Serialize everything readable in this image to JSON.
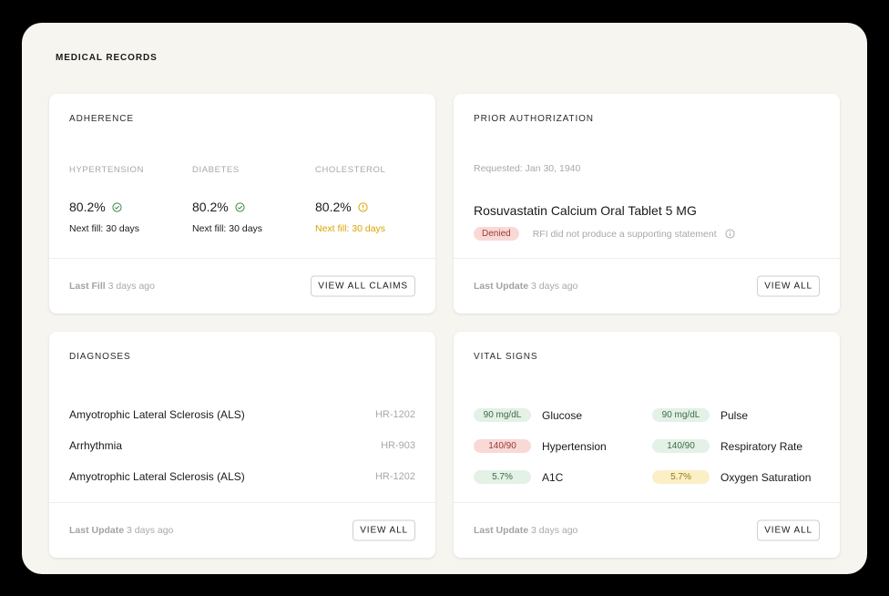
{
  "page": {
    "title": "MEDICAL RECORDS"
  },
  "colors": {
    "accent_green": "#3a8a4a",
    "warning_yellow": "#d9a400",
    "denied_red": "#f9d9d6"
  },
  "adherence": {
    "title": "ADHERENCE",
    "items": [
      {
        "label": "HYPERTENSION",
        "value": "80.2%",
        "status_icon": "check-circle-icon",
        "next_fill": "Next fill: 30 days"
      },
      {
        "label": "DIABETES",
        "value": "80.2%",
        "status_icon": "check-circle-icon",
        "next_fill": "Next fill: 30 days"
      },
      {
        "label": "CHOLESTEROL",
        "value": "80.2%",
        "status_icon": "warning-circle-icon",
        "next_fill": "Next fill: 30 days"
      }
    ],
    "footer_label": "Last Fill",
    "footer_time": "3 days ago",
    "button": "VIEW ALL CLAIMS"
  },
  "prior_auth": {
    "title": "PRIOR AUTHORIZATION",
    "requested": "Requested: Jan 30, 1940",
    "drug": "Rosuvastatin Calcium Oral Tablet 5 MG",
    "status": "Denied",
    "reason": "RFI did not produce a supporting statement",
    "footer_label": "Last Update",
    "footer_time": "3 days ago",
    "button": "VIEW ALL"
  },
  "diagnoses": {
    "title": "DIAGNOSES",
    "items": [
      {
        "name": "Amyotrophic Lateral Sclerosis (ALS)",
        "code": "HR-1202"
      },
      {
        "name": "Arrhythmia",
        "code": "HR-903"
      },
      {
        "name": "Amyotrophic Lateral Sclerosis (ALS)",
        "code": "HR-1202"
      }
    ],
    "footer_label": "Last Update",
    "footer_time": "3 days ago",
    "button": "VIEW ALL"
  },
  "vitals": {
    "title": "VITAL SIGNS",
    "items": [
      {
        "value": "90 mg/dL",
        "name": "Glucose",
        "status": "green"
      },
      {
        "value": "90 mg/dL",
        "name": "Pulse",
        "status": "green"
      },
      {
        "value": "140/90",
        "name": "Hypertension",
        "status": "red"
      },
      {
        "value": "140/90",
        "name": "Respiratory Rate",
        "status": "green"
      },
      {
        "value": "5.7%",
        "name": "A1C",
        "status": "green"
      },
      {
        "value": "5.7%",
        "name": "Oxygen Saturation",
        "status": "yellow"
      }
    ],
    "footer_label": "Last Update",
    "footer_time": "3 days ago",
    "button": "VIEW ALL"
  }
}
